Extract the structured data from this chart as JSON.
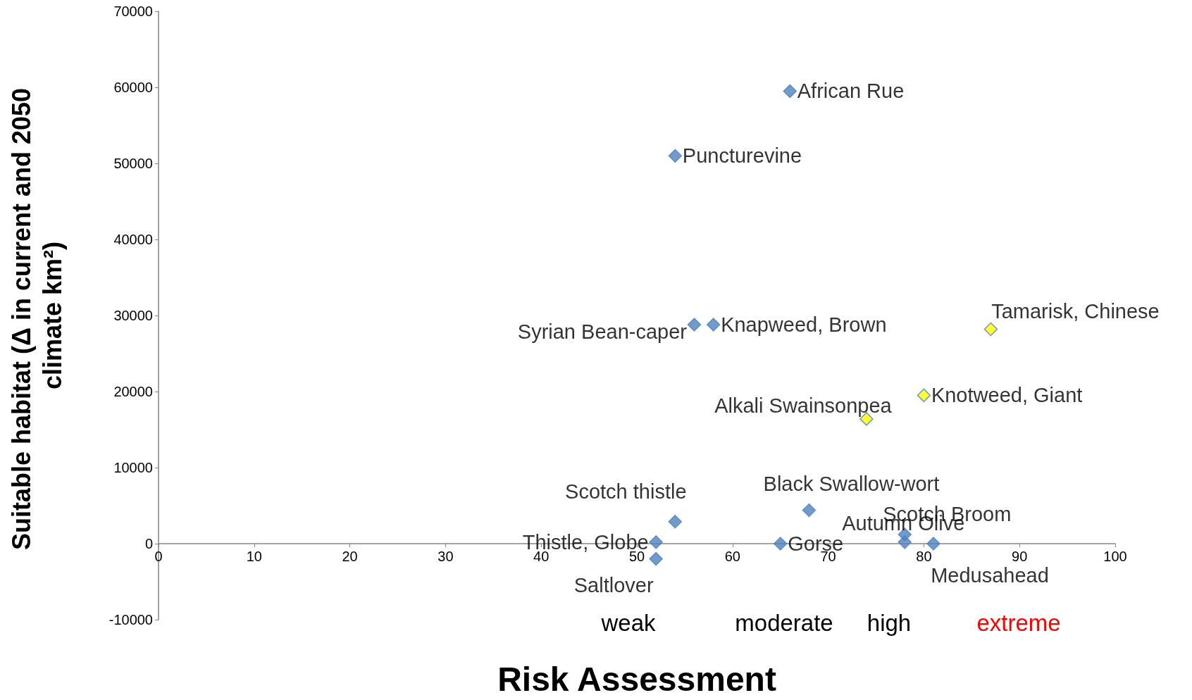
{
  "chart_data": {
    "type": "scatter",
    "xlabel": "Risk Assessment",
    "ylabel": "Suitable habitat (Δ in current and 2050 climate km²)",
    "marker": "diamond",
    "xlim": [
      0,
      100
    ],
    "xticks": [
      0,
      10,
      20,
      30,
      40,
      50,
      60,
      70,
      80,
      90,
      100
    ],
    "ylim": [
      -10000,
      70000
    ],
    "yticks": [
      -10000,
      0,
      10000,
      20000,
      30000,
      40000,
      50000,
      60000,
      70000
    ],
    "series": [
      {
        "color": "#4f81bd",
        "x": [
          66,
          54,
          56,
          58,
          68,
          54,
          52,
          52,
          65,
          78,
          78,
          81
        ],
        "values": [
          59500,
          51000,
          28800,
          28800,
          4400,
          2900,
          200,
          -2000,
          0,
          200,
          1200,
          0
        ]
      },
      {
        "color": "#ffff00",
        "x": [
          87,
          80,
          74
        ],
        "values": [
          28200,
          19500,
          16400
        ]
      }
    ],
    "annotations": [
      {
        "text": "African Rue",
        "x": 66,
        "y": 59500
      },
      {
        "text": "Puncturevine",
        "x": 54,
        "y": 51000
      },
      {
        "text": "Syrian Bean-caper",
        "x": 56,
        "y": 28800
      },
      {
        "text": "Knapweed, Brown",
        "x": 58,
        "y": 28800
      },
      {
        "text": "Black Swallow-wort",
        "x": 68,
        "y": 4400
      },
      {
        "text": "Scotch thistle",
        "x": 54,
        "y": 2900
      },
      {
        "text": "Thistle, Globe",
        "x": 52,
        "y": 200
      },
      {
        "text": "Saltlover",
        "x": 52,
        "y": -2000
      },
      {
        "text": "Gorse",
        "x": 65,
        "y": 0
      },
      {
        "text": "Autumn Olive",
        "x": 78,
        "y": 200
      },
      {
        "text": "Scotch Broom",
        "x": 78,
        "y": 1200
      },
      {
        "text": "Medusahead",
        "x": 81,
        "y": 0
      },
      {
        "text": "Tamarisk, Chinese",
        "x": 87,
        "y": 28200
      },
      {
        "text": "Knotweed, Giant",
        "x": 80,
        "y": 19500
      },
      {
        "text": "Alkali Swainsonpea",
        "x": 74,
        "y": 16400
      },
      "weak",
      "moderate",
      "high",
      "extreme"
    ]
  }
}
